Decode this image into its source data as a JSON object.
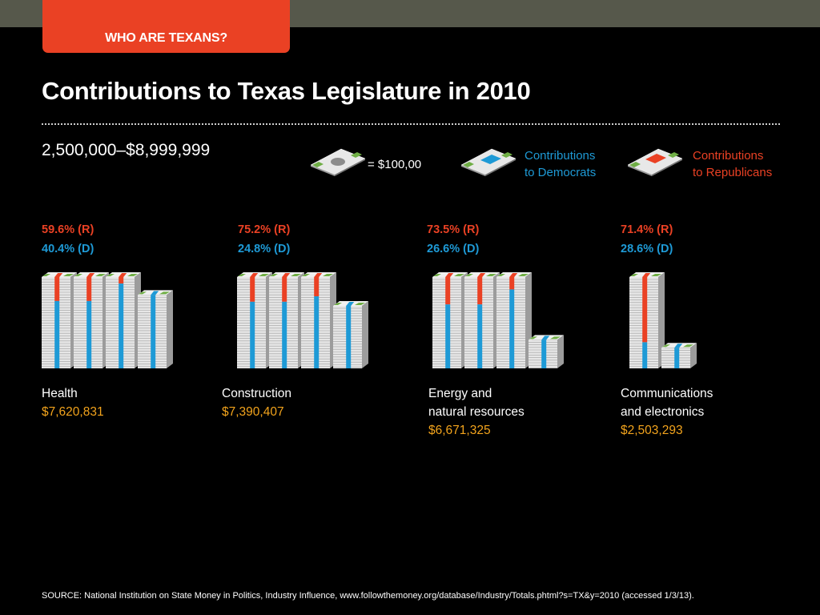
{
  "header": {
    "tab_label": "WHO ARE TEXANS?"
  },
  "title": "Contributions to Texas Legislature in 2010",
  "range_label": "2,500,000–$8,999,999",
  "legend": {
    "unit_label": "= $100,00",
    "dem_line1": "Contributions",
    "dem_line2": "to Democrats",
    "rep_line1": "Contributions",
    "rep_line2": "to Republicans"
  },
  "colors": {
    "republican": "#ea4124",
    "democrat": "#1e9ad6",
    "amount": "#f2a31c",
    "money_band": "#6fae45"
  },
  "chart_data": {
    "type": "bar",
    "categories": [
      "Health",
      "Construction",
      "Energy and natural resources",
      "Communications and electronics"
    ],
    "series": [
      {
        "name": "Contributions to Republicans",
        "values": [
          59.6,
          75.2,
          73.5,
          71.4
        ]
      },
      {
        "name": "Contributions to Democrats",
        "values": [
          40.4,
          24.8,
          26.6,
          28.6
        ]
      }
    ],
    "totals": [
      7620831,
      7390407,
      6671325,
      2503293
    ],
    "ylim": [
      0,
      100
    ]
  },
  "categories": [
    {
      "line1": "Health",
      "line2": "",
      "amount": "$7,620,831",
      "r_label": "59.6% (R)",
      "d_label": "40.4% (D)"
    },
    {
      "line1": "Construction",
      "line2": "",
      "amount": "$7,390,407",
      "r_label": "75.2% (R)",
      "d_label": "24.8% (D)"
    },
    {
      "line1": "Energy and",
      "line2": "natural resources",
      "amount": "$6,671,325",
      "r_label": "73.5% (R)",
      "d_label": "26.6% (D)"
    },
    {
      "line1": "Communications",
      "line2": "and electronics",
      "amount": "$2,503,293",
      "r_label": "71.4% (R)",
      "d_label": "28.6% (D)"
    }
  ],
  "source": "SOURCE: National Institution on State Money in Politics, Industry Influence, www.followthemoney.org/database/Industry/Totals.phtml?s=TX&y=2010 (accessed 1/3/13)."
}
